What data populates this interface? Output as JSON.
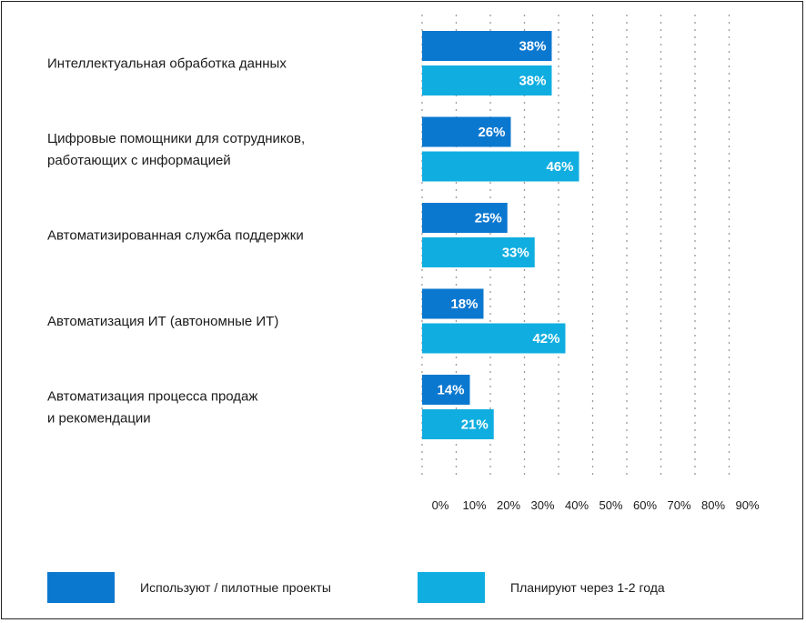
{
  "chart_data": {
    "type": "bar",
    "orientation": "horizontal",
    "categories": [
      [
        "Интеллектуальная обработка данных"
      ],
      [
        "Цифровые помощники для сотрудников,",
        "работающих с информацией"
      ],
      [
        "Автоматизированная служба поддержки"
      ],
      [
        "Автоматизация ИТ (автономные ИТ)"
      ],
      [
        "Автоматизация процесса продаж",
        "и рекомендации"
      ]
    ],
    "series": [
      {
        "name": "Используют / пилотные проекты",
        "values": [
          38,
          26,
          25,
          18,
          14
        ],
        "color": "#0b78d0"
      },
      {
        "name": "Планируют через 1-2 года",
        "values": [
          38,
          46,
          33,
          42,
          21
        ],
        "color": "#10aee0"
      }
    ],
    "value_suffix": "%",
    "xlim": [
      0,
      100
    ],
    "xticks": [
      "0%",
      "10%",
      "20%",
      "30%",
      "40%",
      "50%",
      "60%",
      "70%",
      "80%",
      "90%"
    ],
    "grid": "vertical dotted",
    "legend_position": "bottom",
    "title": "",
    "xlabel": "",
    "ylabel": ""
  }
}
